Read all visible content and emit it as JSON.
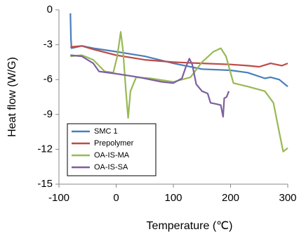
{
  "chart_data": {
    "type": "line",
    "xlabel": "Temperature (℃)",
    "ylabel": "Heat flow (W/G)",
    "xlim": [
      -100,
      300
    ],
    "xticks": [
      -100,
      0,
      100,
      200,
      300
    ],
    "ylim": [
      -15,
      0
    ],
    "yticks": [
      0,
      -3,
      -6,
      -9,
      -12,
      -15
    ],
    "grid": false,
    "legend": "lower left",
    "series": [
      {
        "name": "SMC 1",
        "color": "#4a7ebb",
        "x": [
          -80,
          -79,
          -78,
          -60,
          -40,
          0,
          50,
          100,
          150,
          200,
          230,
          260,
          270,
          285,
          300
        ],
        "values": [
          -0.3,
          -2.5,
          -3.3,
          -3.1,
          -3.3,
          -3.6,
          -4.0,
          -4.6,
          -5.1,
          -5.2,
          -5.4,
          -5.9,
          -5.8,
          -6.0,
          -6.6
        ]
      },
      {
        "name": "Prepolymer",
        "color": "#be4b48",
        "x": [
          -80,
          -60,
          -40,
          0,
          50,
          100,
          150,
          200,
          230,
          250,
          270,
          290,
          300
        ],
        "values": [
          -3.2,
          -3.1,
          -3.4,
          -3.9,
          -4.3,
          -4.5,
          -4.6,
          -4.7,
          -4.8,
          -4.9,
          -4.6,
          -4.8,
          -4.6
        ]
      },
      {
        "name": "OA-IS-MA",
        "color": "#98b954",
        "x": [
          -80,
          -60,
          -40,
          -20,
          -5,
          2,
          8,
          12,
          17,
          21,
          25,
          35,
          60,
          100,
          130,
          150,
          170,
          183,
          192,
          205,
          230,
          260,
          275,
          285,
          292,
          297,
          300
        ],
        "values": [
          -4.0,
          -3.9,
          -4.3,
          -5.3,
          -5.4,
          -4.0,
          -1.9,
          -3.5,
          -7.0,
          -9.3,
          -7.0,
          -5.8,
          -5.9,
          -6.2,
          -5.8,
          -4.5,
          -3.6,
          -3.3,
          -4.0,
          -6.3,
          -6.6,
          -7.0,
          -8.0,
          -10.5,
          -12.2,
          -12.0,
          -11.9
        ]
      },
      {
        "name": "OA-IS-SA",
        "color": "#7d5fa0",
        "x": [
          -80,
          -60,
          -40,
          -30,
          0,
          40,
          80,
          100,
          115,
          122,
          128,
          133,
          140,
          150,
          160,
          165,
          175,
          183,
          187,
          189,
          193,
          197
        ],
        "values": [
          -3.9,
          -4.0,
          -4.6,
          -5.3,
          -5.5,
          -5.8,
          -6.2,
          -6.3,
          -5.9,
          -4.9,
          -4.2,
          -4.7,
          -6.4,
          -7.0,
          -7.2,
          -8.0,
          -8.1,
          -8.2,
          -9.2,
          -7.6,
          -7.5,
          -7.0
        ]
      }
    ]
  }
}
